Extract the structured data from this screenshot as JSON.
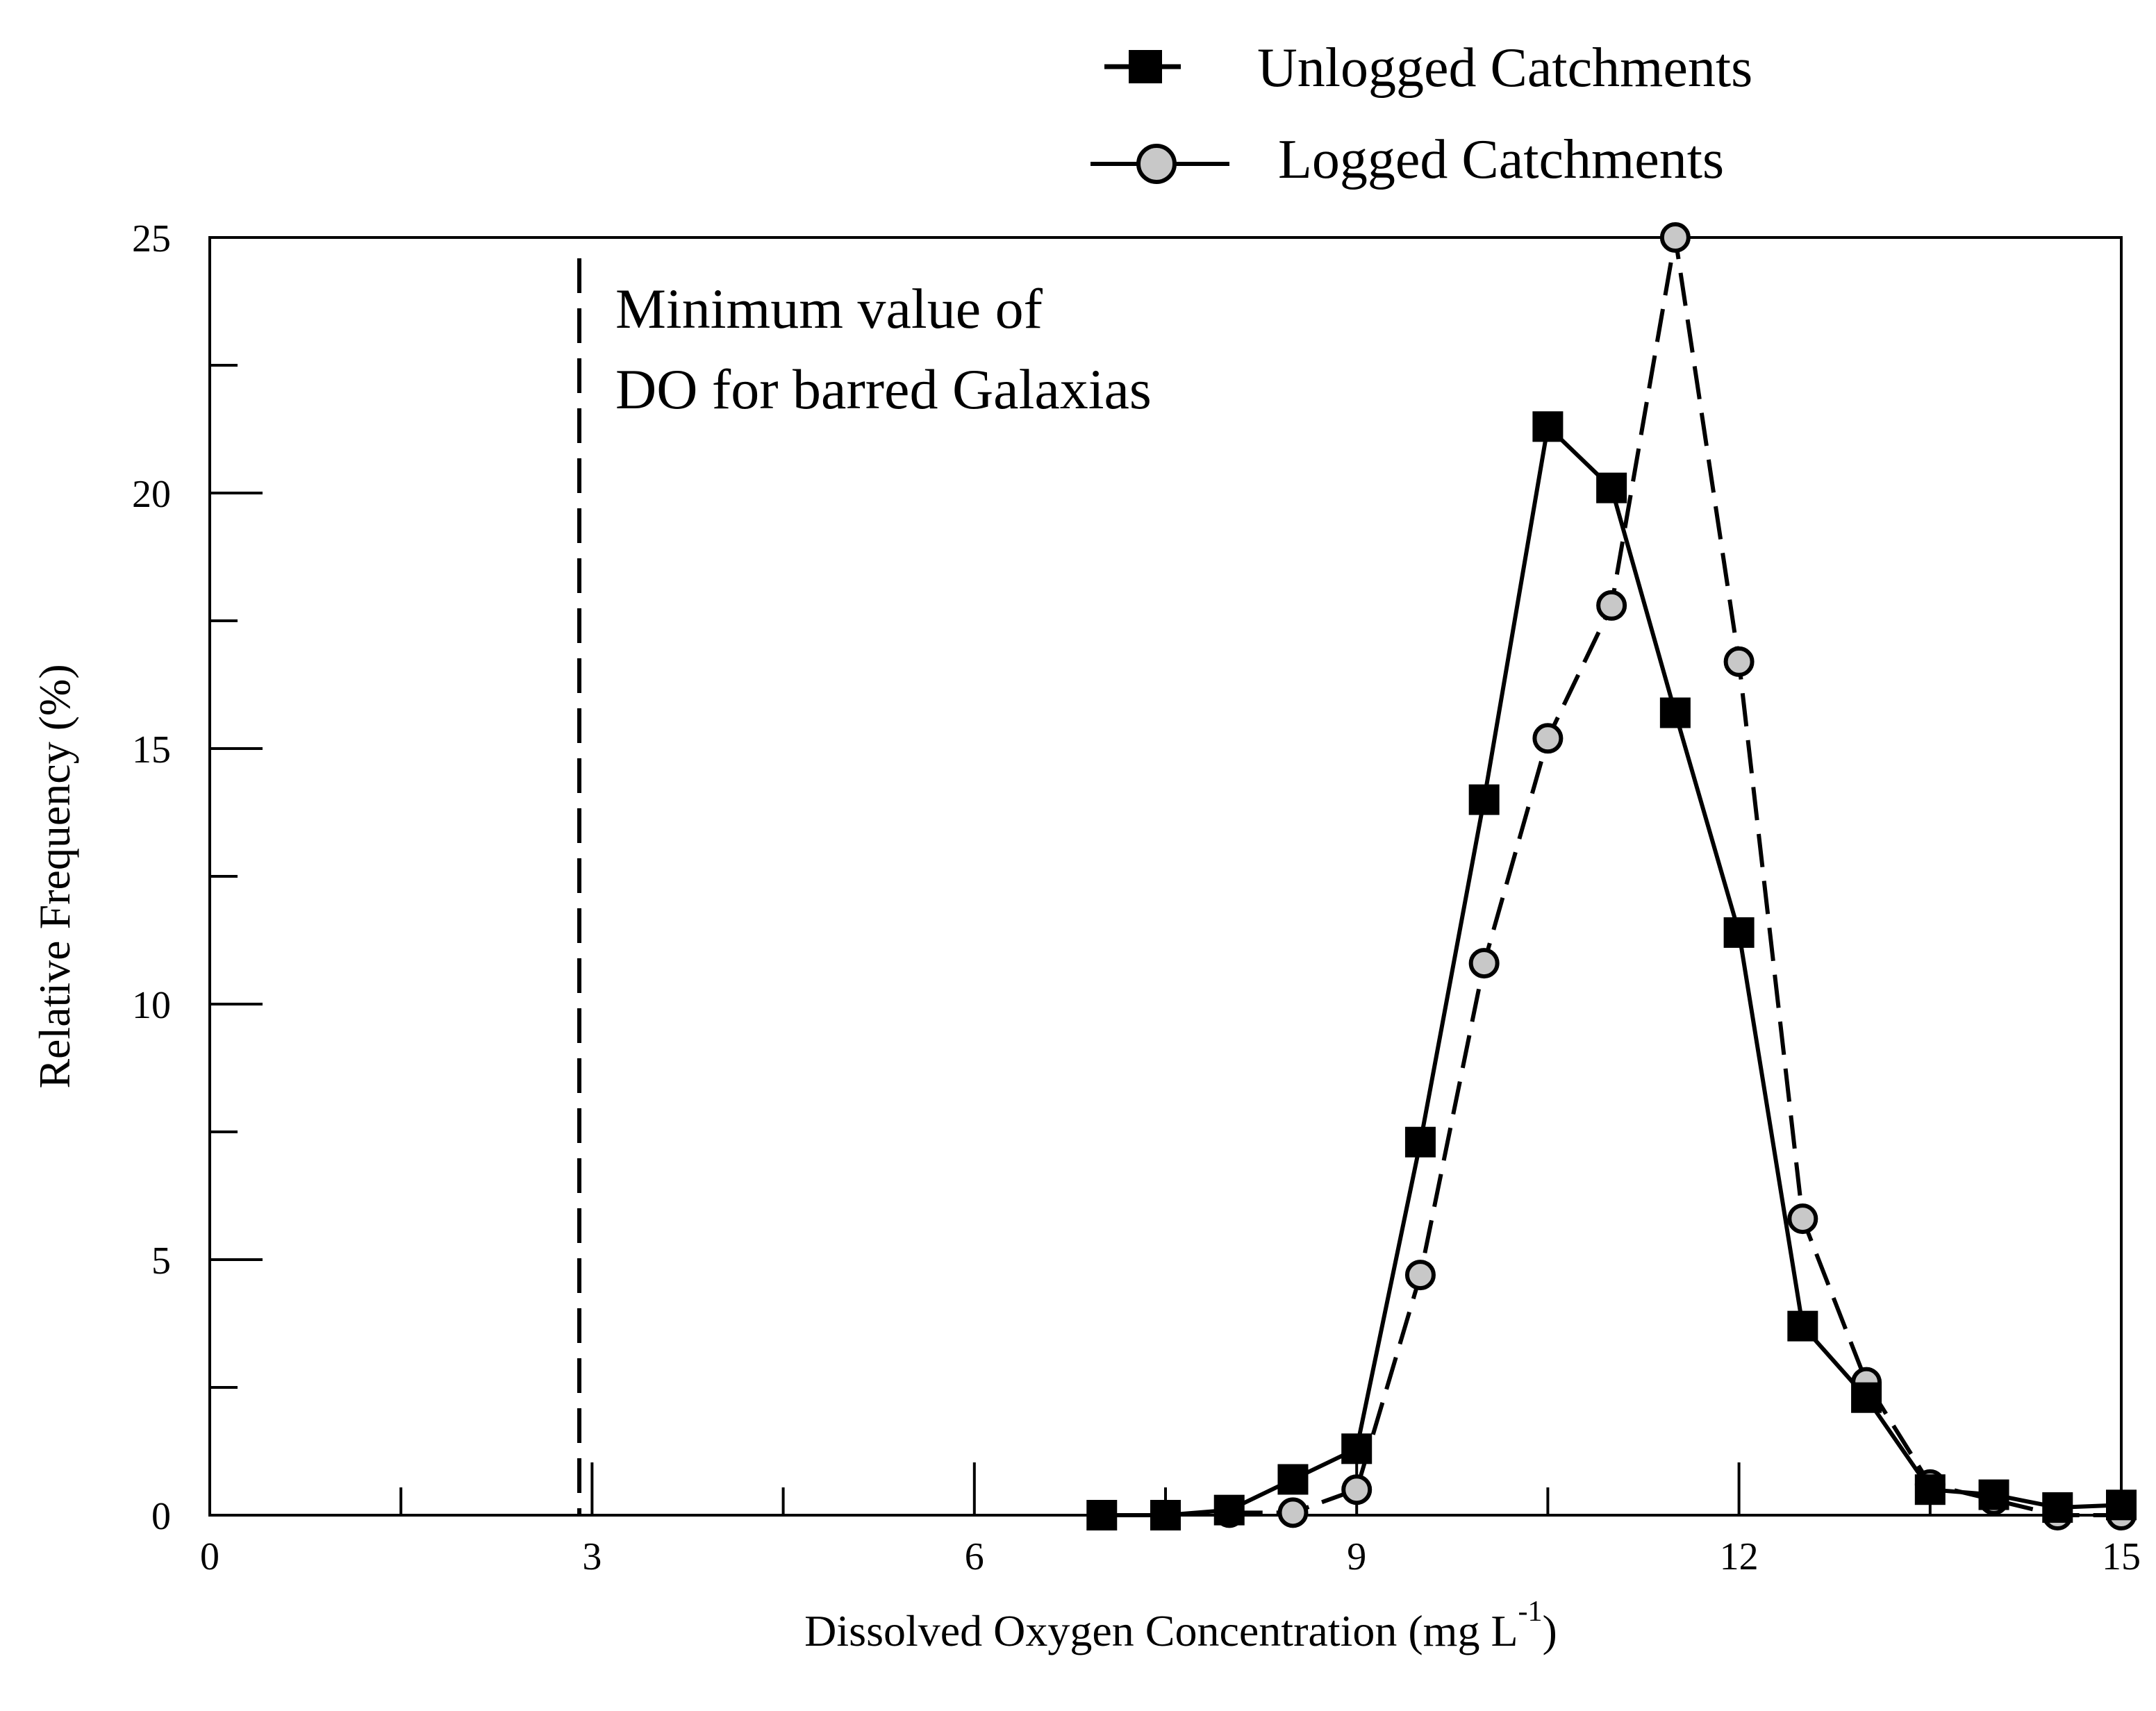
{
  "chart_data": {
    "type": "line",
    "title": "",
    "xlabel": "Dissolved Oxygen Concentration (mg L",
    "xlabel_sup": "-1",
    "xlabel_close": ")",
    "ylabel": "Relative Frequency (%)",
    "xlim": [
      0,
      15
    ],
    "ylim": [
      0,
      25
    ],
    "x_ticks": [
      0,
      3,
      6,
      9,
      12,
      15
    ],
    "x_minor_ticks": [
      1.5,
      4.5,
      7.5,
      10.5,
      13.5
    ],
    "y_ticks": [
      0,
      5,
      10,
      15,
      20,
      25
    ],
    "y_minor_ticks": [
      2.5,
      7.5,
      12.5,
      17.5,
      22.5
    ],
    "legend_position": "top-right",
    "series": [
      {
        "name": "Unlogged Catchments",
        "marker": "square",
        "line_style": "solid",
        "marker_color": "#000000",
        "x": [
          7,
          7.5,
          8,
          8.5,
          9,
          9.5,
          10,
          10.5,
          11,
          11.5,
          12,
          12.5,
          13,
          13.5,
          14,
          14.5,
          15
        ],
        "values": [
          0,
          0,
          0.1,
          0.7,
          1.3,
          7.3,
          14.0,
          21.3,
          20.1,
          15.7,
          11.4,
          3.7,
          2.3,
          0.5,
          0.4,
          0.15,
          0.2
        ]
      },
      {
        "name": "Logged Catchments",
        "marker": "circle",
        "line_style": "dashed",
        "marker_color": "#c8c8c8",
        "x": [
          8,
          8.5,
          9,
          9.5,
          10,
          10.5,
          11,
          11.5,
          12,
          12.5,
          13,
          13.5,
          14,
          14.5,
          15
        ],
        "values": [
          0.05,
          0.05,
          0.5,
          4.7,
          10.8,
          15.2,
          17.8,
          25.0,
          16.7,
          5.8,
          2.6,
          0.6,
          0.3,
          0,
          0
        ]
      }
    ],
    "annotations": [
      {
        "type": "vertical_line",
        "x": 2.9,
        "style": "dashed",
        "text_line1": "Minimum value of",
        "text_line2": "DO for barred Galaxias"
      }
    ]
  }
}
